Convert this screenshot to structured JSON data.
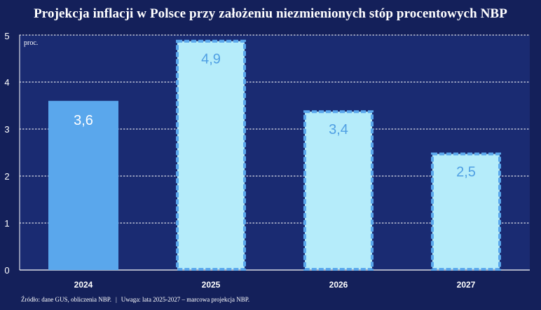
{
  "title": "Projekcja inflacji w Polsce przy założeniu niezmienionych stóp procentowych NBP",
  "footer": {
    "source": "Źródło: dane GUS, obliczenia NBP.",
    "separator": "|",
    "note": "Uwaga: lata 2025-2027 – marcowa projekcja NBP."
  },
  "colors": {
    "background": "#14205a",
    "plot_background": "#1a2b72",
    "actual_bar": "#5aa7ec",
    "projection_fill": "#b5ecfa",
    "projection_border": "#5aa7ec",
    "projection_label": "#4f9fe3",
    "actual_label": "#ffffff"
  },
  "chart_data": {
    "type": "bar",
    "categories": [
      "2024",
      "2025",
      "2026",
      "2027"
    ],
    "values": [
      3.6,
      4.9,
      3.4,
      2.5
    ],
    "value_labels": [
      "3,6",
      "4,9",
      "3,4",
      "2,5"
    ],
    "bar_style": [
      "actual",
      "projection",
      "projection",
      "projection"
    ],
    "ylabel": "proc.",
    "ylim": [
      0,
      5
    ],
    "yticks": [
      0,
      1,
      2,
      3,
      4,
      5
    ],
    "grid": true
  }
}
